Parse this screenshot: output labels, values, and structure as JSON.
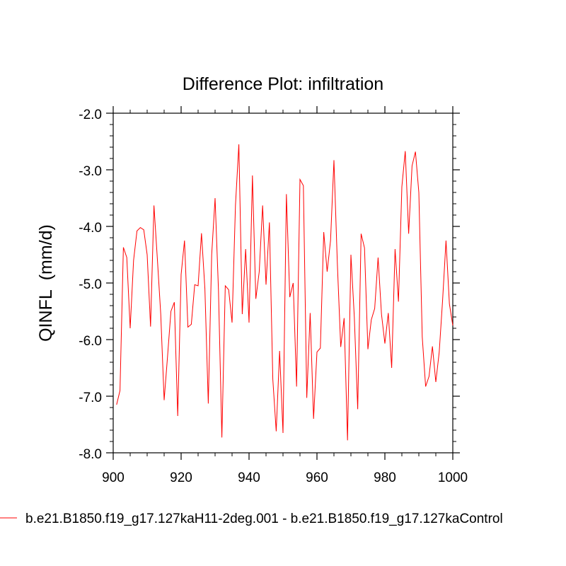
{
  "chart_data": {
    "type": "line",
    "title": "Difference Plot: infiltration",
    "xlabel": "",
    "ylabel": "QINFL  (mm/d)",
    "xlim": [
      900,
      1000
    ],
    "ylim": [
      -8.0,
      -2.0
    ],
    "x_ticks": [
      900,
      920,
      940,
      960,
      980,
      1000
    ],
    "y_ticks": [
      -8.0,
      -7.0,
      -6.0,
      -5.0,
      -4.0,
      -3.0,
      -2.0
    ],
    "x_tick_labels": [
      "900",
      "920",
      "940",
      "960",
      "980",
      "1000"
    ],
    "y_tick_labels": [
      "-8.0",
      "-7.0",
      "-6.0",
      "-5.0",
      "-4.0",
      "-3.0",
      "-2.0"
    ],
    "grid": false,
    "legend_position": "bottom",
    "series": [
      {
        "name": "b.e21.B1850.f19_g17.127kaH11-2deg.001 - b.e21.B1850.f19_g17.127kaControl",
        "color": "#ff0000",
        "x": [
          901,
          902,
          903,
          904,
          905,
          906,
          907,
          908,
          909,
          910,
          911,
          912,
          913,
          914,
          915,
          916,
          917,
          918,
          919,
          920,
          921,
          922,
          923,
          924,
          925,
          926,
          927,
          928,
          929,
          930,
          931,
          932,
          933,
          934,
          935,
          936,
          937,
          938,
          939,
          940,
          941,
          942,
          943,
          944,
          945,
          946,
          947,
          948,
          949,
          950,
          951,
          952,
          953,
          954,
          955,
          956,
          957,
          958,
          959,
          960,
          961,
          962,
          963,
          964,
          965,
          966,
          967,
          968,
          969,
          970,
          971,
          972,
          973,
          974,
          975,
          976,
          977,
          978,
          979,
          980,
          981,
          982,
          983,
          984,
          985,
          986,
          987,
          988,
          989,
          990,
          991,
          992,
          993,
          994,
          995,
          996,
          997,
          998,
          999,
          1000
        ],
        "values": [
          -7.15,
          -6.9,
          -4.37,
          -4.55,
          -5.8,
          -4.6,
          -4.08,
          -4.02,
          -4.06,
          -4.5,
          -5.77,
          -3.63,
          -4.57,
          -5.55,
          -7.07,
          -6.3,
          -5.5,
          -5.34,
          -7.35,
          -4.85,
          -4.25,
          -5.78,
          -5.73,
          -5.03,
          -5.05,
          -4.12,
          -5.1,
          -7.13,
          -4.5,
          -3.5,
          -5.13,
          -7.73,
          -5.05,
          -5.12,
          -5.7,
          -3.63,
          -2.55,
          -5.55,
          -4.4,
          -5.7,
          -3.1,
          -5.28,
          -4.8,
          -3.63,
          -5.03,
          -3.93,
          -6.7,
          -7.62,
          -6.2,
          -7.65,
          -3.43,
          -5.25,
          -5.0,
          -6.83,
          -3.17,
          -3.28,
          -7.03,
          -5.53,
          -7.4,
          -6.22,
          -6.15,
          -4.1,
          -4.8,
          -4.25,
          -2.83,
          -4.65,
          -6.13,
          -5.62,
          -7.78,
          -4.5,
          -5.6,
          -7.23,
          -4.13,
          -4.38,
          -6.17,
          -5.65,
          -5.45,
          -4.55,
          -5.55,
          -6.07,
          -5.53,
          -6.5,
          -4.4,
          -5.33,
          -3.3,
          -2.67,
          -4.13,
          -2.93,
          -2.68,
          -3.4,
          -5.95,
          -6.83,
          -6.65,
          -6.12,
          -6.75,
          -6.22,
          -5.3,
          -4.25,
          -5.37,
          -5.75
        ]
      }
    ]
  }
}
